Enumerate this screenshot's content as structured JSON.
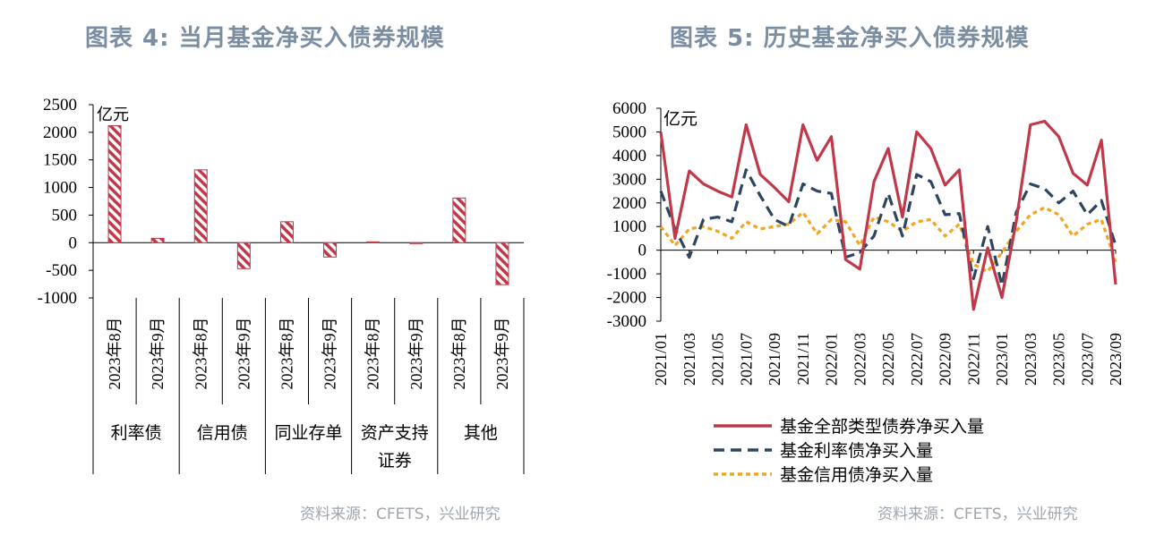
{
  "titles": {
    "left": "图表 4:  当月基金净买入债券规模",
    "right": "图表 5:  历史基金净买入债券规模"
  },
  "sources": {
    "left": "资料来源：CFETS，兴业研究",
    "right": "资料来源：CFETS，兴业研究"
  },
  "colors": {
    "red": "#c0394a",
    "navy": "#2e4560",
    "orange": "#f2a51f"
  },
  "chart_data": [
    {
      "type": "bar",
      "title": "当月基金净买入债券规模",
      "unit": "亿元",
      "yticks": [
        "2500",
        "2000",
        "1500",
        "1000",
        "500",
        "0",
        "-500",
        "-1000"
      ],
      "ylim": [
        -1000,
        2500
      ],
      "categories": [
        "2023年8月",
        "2023年9月",
        "2023年8月",
        "2023年9月",
        "2023年8月",
        "2023年9月",
        "2023年8月",
        "2023年9月",
        "2023年8月",
        "2023年9月"
      ],
      "groups": [
        {
          "label": "利率债",
          "label2": ""
        },
        {
          "label": "信用债",
          "label2": ""
        },
        {
          "label": "同业存单",
          "label2": ""
        },
        {
          "label": "资产支持",
          "label2": "证券"
        },
        {
          "label": "其他",
          "label2": ""
        }
      ],
      "values": [
        2120,
        80,
        1320,
        -470,
        380,
        -260,
        15,
        -10,
        810,
        -760
      ]
    },
    {
      "type": "line",
      "title": "历史基金净买入债券规模",
      "unit": "亿元",
      "yticks": [
        "6000",
        "5000",
        "4000",
        "3000",
        "2000",
        "1000",
        "0",
        "-1000",
        "-2000",
        "-3000"
      ],
      "ylim": [
        -3000,
        6000
      ],
      "x": [
        "2021/01",
        "2021/02",
        "2021/03",
        "2021/04",
        "2021/05",
        "2021/06",
        "2021/07",
        "2021/08",
        "2021/09",
        "2021/10",
        "2021/11",
        "2021/12",
        "2022/01",
        "2022/02",
        "2022/03",
        "2022/04",
        "2022/05",
        "2022/06",
        "2022/07",
        "2022/08",
        "2022/09",
        "2022/10",
        "2022/11",
        "2022/12",
        "2023/01",
        "2023/02",
        "2023/03",
        "2023/04",
        "2023/05",
        "2023/06",
        "2023/07",
        "2023/08",
        "2023/09"
      ],
      "xtick_labels": [
        "2021/01",
        "2021/03",
        "2021/05",
        "2021/07",
        "2021/09",
        "2021/11",
        "2022/01",
        "2022/03",
        "2022/05",
        "2022/07",
        "2022/09",
        "2022/11",
        "2023/01",
        "2023/03",
        "2023/05",
        "2023/07",
        "2023/09"
      ],
      "series": [
        {
          "name": "基金全部类型债券净买入量",
          "style": "solid",
          "values": [
            5000,
            500,
            3350,
            2800,
            2500,
            2250,
            5300,
            3200,
            2650,
            2050,
            5300,
            3800,
            4800,
            -400,
            -800,
            2900,
            4300,
            1400,
            5000,
            4300,
            2750,
            3400,
            -2500,
            100,
            -2000,
            1200,
            5300,
            5450,
            4800,
            3250,
            2750,
            4650,
            -1450
          ]
        },
        {
          "name": "基金利率债净买入量",
          "style": "dash",
          "values": [
            2500,
            900,
            -300,
            1300,
            1400,
            1200,
            3400,
            2300,
            1300,
            1000,
            2800,
            2500,
            2400,
            -300,
            -100,
            600,
            2400,
            600,
            3200,
            2900,
            1500,
            1550,
            -1200,
            1000,
            -1500,
            1600,
            2800,
            2600,
            2000,
            2500,
            1500,
            2100,
            200
          ]
        },
        {
          "name": "基金信用债净买入量",
          "style": "dot",
          "values": [
            1000,
            200,
            900,
            1000,
            800,
            500,
            1200,
            900,
            1000,
            1100,
            1600,
            700,
            1300,
            1200,
            200,
            1400,
            1200,
            800,
            1200,
            1300,
            600,
            1100,
            -600,
            -900,
            -100,
            800,
            1500,
            1800,
            1500,
            600,
            1100,
            1300,
            -500
          ]
        }
      ]
    }
  ]
}
